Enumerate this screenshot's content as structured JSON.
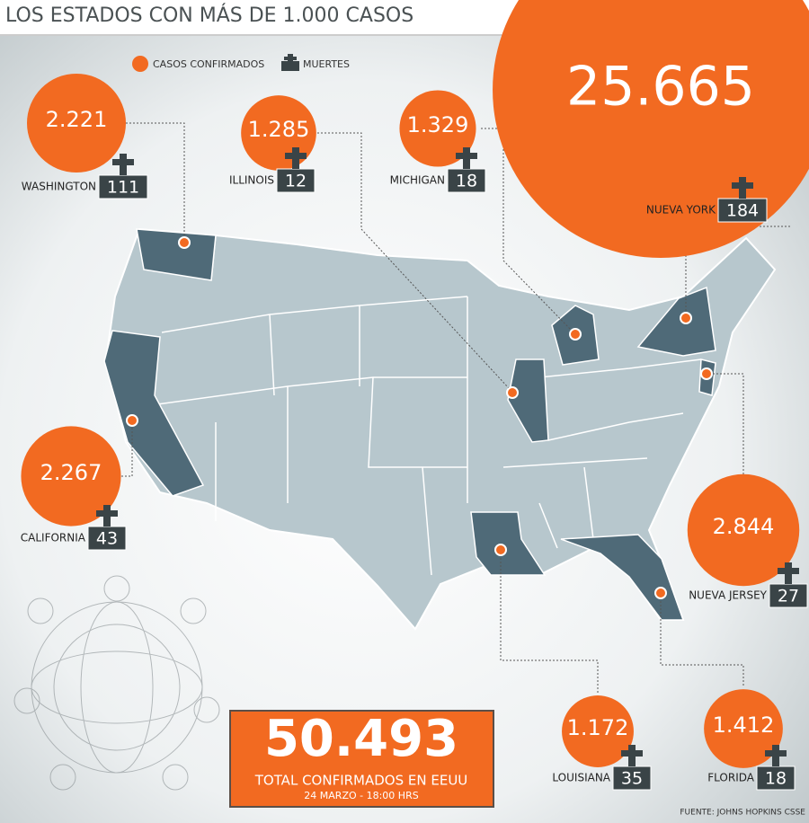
{
  "chart_data": {
    "type": "bubble-map",
    "title": "LOS ESTADOS CON MÁS DE 1.000 CASOS",
    "categories": [
      "WASHINGTON",
      "ILLINOIS",
      "MICHIGAN",
      "NUEVA YORK",
      "CALIFORNIA",
      "NUEVA JERSEY",
      "LOUISIANA",
      "FLORIDA"
    ],
    "series": [
      {
        "name": "CASOS CONFIRMADOS",
        "color": "#f26a21",
        "values": [
          2221,
          1285,
          1329,
          25665,
          2267,
          2844,
          1172,
          1412
        ],
        "value_labels": [
          "2.221",
          "1.285",
          "1.329",
          "25.665",
          "2.267",
          "2.844",
          "1.172",
          "1.412"
        ]
      },
      {
        "name": "MUERTES",
        "color": "#3a4447",
        "values": [
          111,
          12,
          18,
          184,
          43,
          27,
          35,
          18
        ]
      }
    ],
    "total": "50.493",
    "total_caption": "TOTAL CONFIRMADOS EN EEUU",
    "date": "24 MARZO - 18:00 HRS",
    "source": "FUENTE: JOHNS HOPKINS CSSE"
  }
}
